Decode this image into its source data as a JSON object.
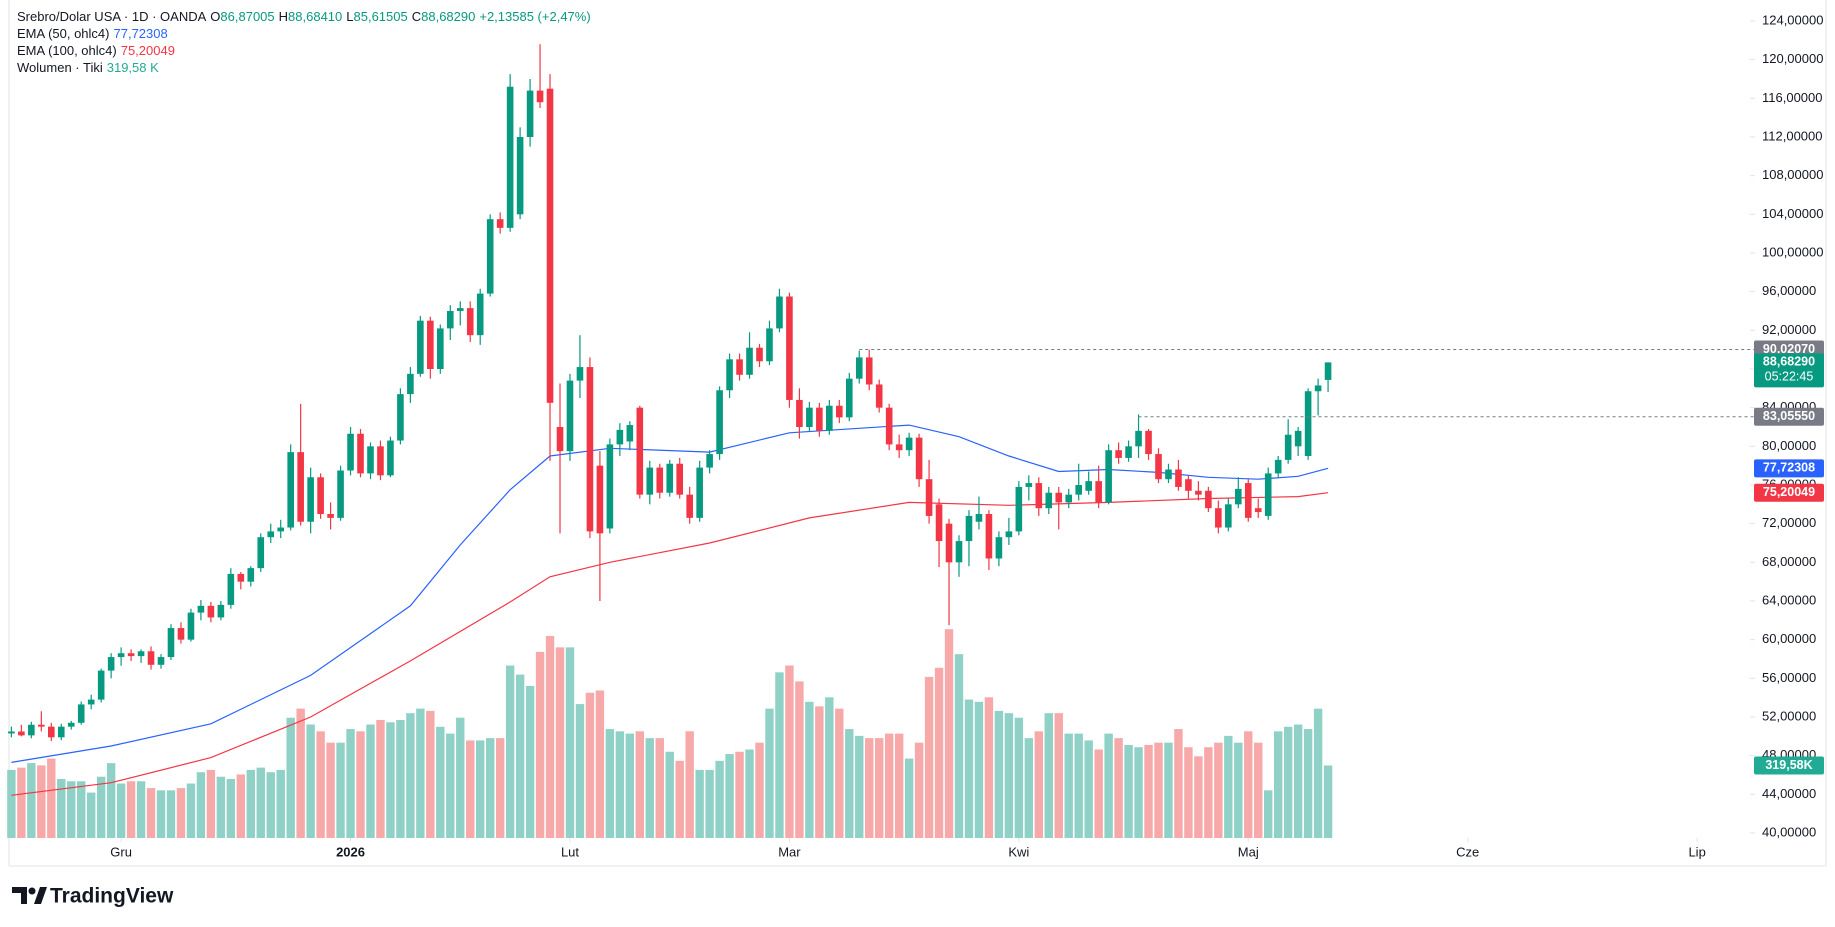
{
  "header": {
    "symbol": "Srebro/Dolar USA · 1D · OANDA",
    "ohlc_legend": [
      {
        "key": "O",
        "value": "86,87005"
      },
      {
        "key": "H",
        "value": "88,68410"
      },
      {
        "key": "L",
        "value": "85,61505"
      },
      {
        "key": "C",
        "value": "88,68290"
      }
    ],
    "change": "+2,13585 (+2,47%)"
  },
  "chart_data": {
    "type": "candlestick",
    "up_color": "#089981",
    "down_color": "#f23645",
    "volume_up_color": "#8fd1c6",
    "volume_down_color": "#f7a8a8",
    "xlim": [
      -0.2,
      174.3
    ],
    "ylim": [
      40,
      124
    ],
    "grid": false,
    "xticks": [
      {
        "value": 11,
        "label": "Gru"
      },
      {
        "value": 34,
        "label": "2026"
      },
      {
        "value": 56,
        "label": "Lut"
      },
      {
        "value": 78,
        "label": "Mar"
      },
      {
        "value": 101,
        "label": "Kwi"
      },
      {
        "value": 124,
        "label": "Maj"
      },
      {
        "value": 146,
        "label": "Cze"
      },
      {
        "value": 169,
        "label": "Lip"
      }
    ],
    "yticks": [
      {
        "value": 40,
        "label": "40,00000"
      },
      {
        "value": 44,
        "label": "44,00000"
      },
      {
        "value": 48,
        "label": "48,00000"
      },
      {
        "value": 52,
        "label": "52,00000"
      },
      {
        "value": 56,
        "label": "56,00000"
      },
      {
        "value": 60,
        "label": "60,00000"
      },
      {
        "value": 64,
        "label": "64,00000"
      },
      {
        "value": 68,
        "label": "68,00000"
      },
      {
        "value": 72,
        "label": "72,00000"
      },
      {
        "value": 76,
        "label": "76,00000"
      },
      {
        "value": 80,
        "label": "80,00000"
      },
      {
        "value": 84,
        "label": "84,00000"
      },
      {
        "value": 88,
        "label": "88,00000"
      },
      {
        "value": 92,
        "label": "92,00000"
      },
      {
        "value": 96,
        "label": "96,00000"
      },
      {
        "value": 100,
        "label": "100,00000"
      },
      {
        "value": 104,
        "label": "104,00000"
      },
      {
        "value": 108,
        "label": "108,00000"
      },
      {
        "value": 112,
        "label": "112,00000"
      },
      {
        "value": 116,
        "label": "116,00000"
      },
      {
        "value": 120,
        "label": "120,00000"
      },
      {
        "value": 124,
        "label": "124,00000"
      }
    ],
    "ohlc": [
      [
        50.3,
        51.0,
        49.9,
        50.5
      ],
      [
        50.5,
        51.2,
        50.0,
        50.1
      ],
      [
        50.1,
        51.5,
        49.8,
        51.2
      ],
      [
        51.2,
        52.6,
        50.5,
        51.0
      ],
      [
        51.0,
        51.4,
        49.5,
        49.9
      ],
      [
        49.9,
        51.3,
        49.6,
        51.0
      ],
      [
        51.0,
        51.6,
        50.7,
        51.4
      ],
      [
        51.4,
        53.6,
        51.2,
        53.3
      ],
      [
        53.3,
        54.3,
        52.8,
        53.8
      ],
      [
        53.8,
        57.0,
        53.5,
        56.8
      ],
      [
        56.8,
        58.6,
        56.0,
        58.2
      ],
      [
        58.2,
        59.2,
        57.3,
        58.6
      ],
      [
        58.6,
        59.0,
        57.8,
        58.3
      ],
      [
        58.3,
        59.0,
        57.6,
        58.8
      ],
      [
        58.8,
        59.3,
        56.9,
        57.4
      ],
      [
        57.4,
        58.5,
        57.0,
        58.2
      ],
      [
        58.2,
        61.6,
        57.9,
        61.2
      ],
      [
        61.2,
        61.8,
        59.6,
        60.0
      ],
      [
        60.0,
        63.2,
        59.8,
        62.8
      ],
      [
        62.8,
        64.1,
        62.0,
        63.5
      ],
      [
        63.5,
        63.9,
        61.8,
        62.3
      ],
      [
        62.3,
        64.0,
        62.0,
        63.6
      ],
      [
        63.6,
        67.4,
        63.2,
        66.8
      ],
      [
        66.8,
        67.0,
        65.2,
        66.0
      ],
      [
        66.0,
        67.6,
        65.5,
        67.4
      ],
      [
        67.4,
        71.0,
        67.0,
        70.6
      ],
      [
        70.6,
        72.0,
        70.0,
        71.2
      ],
      [
        71.2,
        72.4,
        70.5,
        71.6
      ],
      [
        71.6,
        80.2,
        71.3,
        79.4
      ],
      [
        79.4,
        84.4,
        71.8,
        72.2
      ],
      [
        72.2,
        77.8,
        71.0,
        76.8
      ],
      [
        76.8,
        77.2,
        72.5,
        73.0
      ],
      [
        73.0,
        74.2,
        71.4,
        72.6
      ],
      [
        72.6,
        78.0,
        72.3,
        77.5
      ],
      [
        77.5,
        82.0,
        77.0,
        81.3
      ],
      [
        81.3,
        81.8,
        76.8,
        77.2
      ],
      [
        77.2,
        80.4,
        76.6,
        80.0
      ],
      [
        80.0,
        80.6,
        76.5,
        77.0
      ],
      [
        77.0,
        81.0,
        76.8,
        80.6
      ],
      [
        80.6,
        86.0,
        80.2,
        85.4
      ],
      [
        85.4,
        88.2,
        84.5,
        87.5
      ],
      [
        87.5,
        93.5,
        87.2,
        93.0
      ],
      [
        93.0,
        93.4,
        87.0,
        88.0
      ],
      [
        88.0,
        92.6,
        87.5,
        92.2
      ],
      [
        92.2,
        94.6,
        91.0,
        94.0
      ],
      [
        94.0,
        95.0,
        92.5,
        94.3
      ],
      [
        94.3,
        95.0,
        90.8,
        91.5
      ],
      [
        91.5,
        96.3,
        90.5,
        95.8
      ],
      [
        95.8,
        104.0,
        95.5,
        103.5
      ],
      [
        103.5,
        104.2,
        102.0,
        102.6
      ],
      [
        102.6,
        118.5,
        102.2,
        117.2
      ],
      [
        104.0,
        113.0,
        103.5,
        112.0
      ],
      [
        112.0,
        118.0,
        111.0,
        116.8
      ],
      [
        116.8,
        121.6,
        115.0,
        115.6
      ],
      [
        117.0,
        118.5,
        78.5,
        84.5
      ],
      [
        82.0,
        86.5,
        71.0,
        79.5
      ],
      [
        79.5,
        87.5,
        78.5,
        86.8
      ],
      [
        86.8,
        91.5,
        85.0,
        88.2
      ],
      [
        88.2,
        89.2,
        70.5,
        71.2
      ],
      [
        78.0,
        79.5,
        64.0,
        71.0
      ],
      [
        71.5,
        80.8,
        71.0,
        80.2
      ],
      [
        80.2,
        82.4,
        79.0,
        81.7
      ],
      [
        80.5,
        82.6,
        79.6,
        82.2
      ],
      [
        84.0,
        84.2,
        74.6,
        75.0
      ],
      [
        75.0,
        78.5,
        74.0,
        77.8
      ],
      [
        77.8,
        78.2,
        74.6,
        75.2
      ],
      [
        75.2,
        78.6,
        74.8,
        78.2
      ],
      [
        78.2,
        78.8,
        74.6,
        75.0
      ],
      [
        75.0,
        75.8,
        72.0,
        72.6
      ],
      [
        72.6,
        78.5,
        72.2,
        77.8
      ],
      [
        77.8,
        79.6,
        77.2,
        79.2
      ],
      [
        79.2,
        86.2,
        78.6,
        85.8
      ],
      [
        85.8,
        89.6,
        85.0,
        89.0
      ],
      [
        89.0,
        89.6,
        86.8,
        87.4
      ],
      [
        87.4,
        91.8,
        87.0,
        90.2
      ],
      [
        90.2,
        90.6,
        88.2,
        88.8
      ],
      [
        88.8,
        93.0,
        88.4,
        92.2
      ],
      [
        92.2,
        96.3,
        91.8,
        95.5
      ],
      [
        95.5,
        95.9,
        84.0,
        84.8
      ],
      [
        84.8,
        86.0,
        80.8,
        82.0
      ],
      [
        82.0,
        84.6,
        81.5,
        84.0
      ],
      [
        84.0,
        84.5,
        81.0,
        81.6
      ],
      [
        81.6,
        84.8,
        81.2,
        84.2
      ],
      [
        84.2,
        84.8,
        82.4,
        83.0
      ],
      [
        83.0,
        87.6,
        82.6,
        87.0
      ],
      [
        87.0,
        89.9,
        86.5,
        89.2
      ],
      [
        89.2,
        90.0,
        85.8,
        86.4
      ],
      [
        86.4,
        86.9,
        83.5,
        84.0
      ],
      [
        84.0,
        84.4,
        79.6,
        80.2
      ],
      [
        80.2,
        81.2,
        78.8,
        79.6
      ],
      [
        79.6,
        81.4,
        79.0,
        80.9
      ],
      [
        80.9,
        81.3,
        75.8,
        76.6
      ],
      [
        76.6,
        78.6,
        72.0,
        72.8
      ],
      [
        74.0,
        74.6,
        67.5,
        70.2
      ],
      [
        72.0,
        72.5,
        61.5,
        68.0
      ],
      [
        68.0,
        70.8,
        66.5,
        70.2
      ],
      [
        70.2,
        73.4,
        67.6,
        72.8
      ],
      [
        72.2,
        74.8,
        71.4,
        73.0
      ],
      [
        73.0,
        73.4,
        67.2,
        68.4
      ],
      [
        68.4,
        71.2,
        67.6,
        70.6
      ],
      [
        70.6,
        72.6,
        69.8,
        71.2
      ],
      [
        71.2,
        76.4,
        70.8,
        75.8
      ],
      [
        75.8,
        77.0,
        74.4,
        76.2
      ],
      [
        76.2,
        76.8,
        72.8,
        73.6
      ],
      [
        73.6,
        75.8,
        73.0,
        75.2
      ],
      [
        75.2,
        75.8,
        71.4,
        74.2
      ],
      [
        74.2,
        75.6,
        73.6,
        75.0
      ],
      [
        75.0,
        78.2,
        74.4,
        76.0
      ],
      [
        75.4,
        77.4,
        75.0,
        76.4
      ],
      [
        76.4,
        78.0,
        73.6,
        74.2
      ],
      [
        74.2,
        80.2,
        74.0,
        79.6
      ],
      [
        79.6,
        80.4,
        78.2,
        78.8
      ],
      [
        78.8,
        80.6,
        78.4,
        80.0
      ],
      [
        80.0,
        83.3,
        78.8,
        81.6
      ],
      [
        81.6,
        81.8,
        78.6,
        79.2
      ],
      [
        79.2,
        79.8,
        76.2,
        76.6
      ],
      [
        76.6,
        78.2,
        76.2,
        77.6
      ],
      [
        77.6,
        78.6,
        75.4,
        75.8
      ],
      [
        76.6,
        77.0,
        74.6,
        75.4
      ],
      [
        75.4,
        76.4,
        74.4,
        75.0
      ],
      [
        75.4,
        75.8,
        73.2,
        73.6
      ],
      [
        73.6,
        74.4,
        71.0,
        71.6
      ],
      [
        71.6,
        74.6,
        71.2,
        74.0
      ],
      [
        74.0,
        76.8,
        73.6,
        75.6
      ],
      [
        76.2,
        76.6,
        72.2,
        72.6
      ],
      [
        73.6,
        74.6,
        72.6,
        73.2
      ],
      [
        72.8,
        77.8,
        72.4,
        77.2
      ],
      [
        77.2,
        79.0,
        76.8,
        78.6
      ],
      [
        78.6,
        82.8,
        78.2,
        81.2
      ],
      [
        80.0,
        82.0,
        79.0,
        81.6
      ],
      [
        79.0,
        86.0,
        78.6,
        85.7
      ],
      [
        85.7,
        87.0,
        83.2,
        86.3
      ],
      [
        86.87005,
        88.6841,
        85.61505,
        88.6829
      ]
    ],
    "volume": {
      "name": "Wolumen · Tiki",
      "legend_value": "319,58 K",
      "badge": "319,58K",
      "ylim": [
        0,
        1150
      ],
      "values": [
        300,
        310,
        330,
        320,
        350,
        260,
        250,
        250,
        200,
        270,
        330,
        240,
        250,
        250,
        220,
        210,
        210,
        220,
        240,
        290,
        300,
        270,
        260,
        280,
        300,
        310,
        290,
        300,
        530,
        570,
        500,
        470,
        420,
        420,
        480,
        470,
        500,
        520,
        510,
        520,
        550,
        570,
        560,
        490,
        460,
        530,
        430,
        430,
        440,
        440,
        760,
        720,
        670,
        820,
        890,
        840,
        840,
        590,
        640,
        650,
        480,
        470,
        460,
        470,
        440,
        440,
        380,
        340,
        470,
        300,
        300,
        340,
        370,
        380,
        390,
        420,
        570,
        730,
        760,
        690,
        600,
        580,
        620,
        570,
        480,
        450,
        440,
        440,
        460,
        460,
        350,
        420,
        710,
        750,
        920,
        810,
        610,
        600,
        620,
        560,
        550,
        530,
        440,
        470,
        550,
        550,
        460,
        460,
        430,
        390,
        460,
        440,
        410,
        400,
        410,
        420,
        420,
        480,
        400,
        360,
        400,
        420,
        450,
        420,
        470,
        420,
        210,
        470,
        490,
        500,
        480,
        570,
        319.58
      ]
    },
    "lines": [
      {
        "name": "EMA (50, ohlc4)",
        "legend_value": "77,72308",
        "color": "#2962ff",
        "x": [
          0,
          10,
          20,
          30,
          40,
          45,
          50,
          54,
          60,
          70,
          78,
          90,
          95,
          100,
          105,
          110,
          115,
          120,
          125,
          129,
          132
        ],
        "values": [
          47.3,
          49.0,
          51.3,
          56.3,
          63.5,
          69.8,
          75.5,
          79.0,
          79.8,
          79.4,
          81.4,
          82.2,
          81.0,
          79.0,
          77.4,
          77.6,
          77.3,
          76.8,
          76.6,
          76.9,
          77.72308
        ]
      },
      {
        "name": "EMA (100, ohlc4)",
        "legend_value": "75,20049",
        "color": "#f23645",
        "x": [
          0,
          10,
          20,
          30,
          40,
          50,
          54,
          60,
          70,
          80,
          90,
          100,
          110,
          120,
          129,
          132
        ],
        "values": [
          43.9,
          45.2,
          47.8,
          52.0,
          57.8,
          63.9,
          66.5,
          68.0,
          70.0,
          72.6,
          74.2,
          73.9,
          74.2,
          74.6,
          74.8,
          75.20049
        ]
      }
    ],
    "hlines": [
      {
        "value": 90.0207,
        "label": "90,02070",
        "from": 85,
        "color": "#787b86"
      },
      {
        "value": 83.0555,
        "label": "83,05550",
        "from": 113,
        "color": "#787b86"
      }
    ],
    "price_badges": [
      {
        "value": 88.6829,
        "label": "88,68290",
        "sub": "05:22:45",
        "color": "#089981"
      },
      {
        "value": 77.72308,
        "label": "77,72308",
        "color": "#2962ff"
      },
      {
        "value": 75.20049,
        "label": "75,20049",
        "color": "#f23645"
      }
    ]
  },
  "footer": {
    "brand": "TradingView"
  }
}
